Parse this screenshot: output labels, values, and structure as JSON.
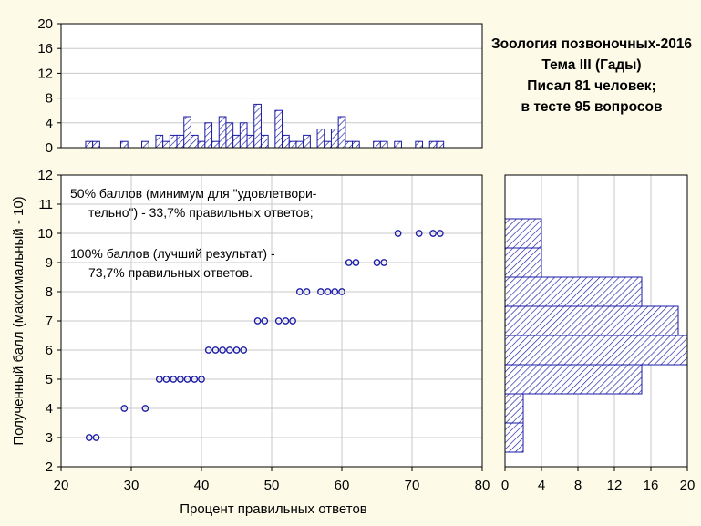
{
  "title_lines": [
    "Зоология позвоночных-2016",
    "Тема III (Гады)",
    "Писал 81 человек;",
    "в тесте 95 вопросов"
  ],
  "annotations": {
    "note1_line1": "50% баллов (минимум для \"удовлетвори-",
    "note1_line2": "тельно\") - 33,7% правильных ответов;",
    "note2_line1": "100% баллов (лучший результат) -",
    "note2_line2": "73,7% правильных ответов."
  },
  "colors": {
    "background": "#fdfbe8",
    "marker": "#1a1aa6",
    "bar_stroke": "#1a1aa6",
    "grid": "#c8c8c8"
  },
  "chart_data": [
    {
      "type": "scatter",
      "xlabel": "Процент правильных ответов",
      "ylabel": "Полученный балл (максимальный - 10)",
      "xlim": [
        20,
        80
      ],
      "ylim": [
        2,
        12
      ],
      "xticks": [
        20,
        30,
        40,
        50,
        60,
        70,
        80
      ],
      "yticks": [
        2,
        3,
        4,
        5,
        6,
        7,
        8,
        9,
        10,
        11,
        12
      ],
      "grid": true,
      "x": [
        24,
        25,
        29,
        32,
        34,
        35,
        36,
        37,
        38,
        39,
        40,
        41,
        42,
        43,
        44,
        45,
        46,
        48,
        49,
        51,
        52,
        53,
        54,
        55,
        57,
        58,
        59,
        60,
        61,
        62,
        65,
        66,
        68,
        71,
        73,
        74
      ],
      "y": [
        3,
        3,
        4,
        4,
        5,
        5,
        5,
        5,
        5,
        5,
        5,
        6,
        6,
        6,
        6,
        6,
        6,
        7,
        7,
        7,
        7,
        7,
        8,
        8,
        8,
        8,
        8,
        8,
        9,
        9,
        9,
        9,
        10,
        10,
        10,
        10
      ]
    },
    {
      "type": "bar",
      "orientation": "vertical",
      "description_axis": "x histogram",
      "yticks": [
        0,
        4,
        8,
        12,
        16,
        20
      ],
      "ylim": [
        0,
        20
      ],
      "x": [
        24,
        25,
        29,
        32,
        34,
        35,
        36,
        37,
        38,
        39,
        40,
        41,
        42,
        43,
        44,
        45,
        46,
        47,
        48,
        49,
        50,
        51,
        52,
        53,
        54,
        55,
        56,
        57,
        58,
        59,
        60,
        61,
        62,
        65,
        66,
        68,
        71,
        73,
        74
      ],
      "values": [
        1,
        1,
        1,
        1,
        2,
        1,
        2,
        2,
        5,
        2,
        1,
        4,
        1,
        5,
        4,
        2,
        4,
        2,
        7,
        2,
        0,
        6,
        2,
        1,
        1,
        2,
        0,
        3,
        1,
        3,
        5,
        1,
        1,
        1,
        1,
        1,
        1,
        1,
        1
      ]
    },
    {
      "type": "bar",
      "orientation": "horizontal",
      "description_axis": "y histogram",
      "xticks": [
        0,
        4,
        8,
        12,
        16,
        20
      ],
      "xlim": [
        0,
        20
      ],
      "categories": [
        3,
        4,
        5,
        6,
        7,
        8,
        9,
        10
      ],
      "values": [
        2,
        2,
        15,
        20,
        19,
        15,
        4,
        4
      ]
    }
  ]
}
